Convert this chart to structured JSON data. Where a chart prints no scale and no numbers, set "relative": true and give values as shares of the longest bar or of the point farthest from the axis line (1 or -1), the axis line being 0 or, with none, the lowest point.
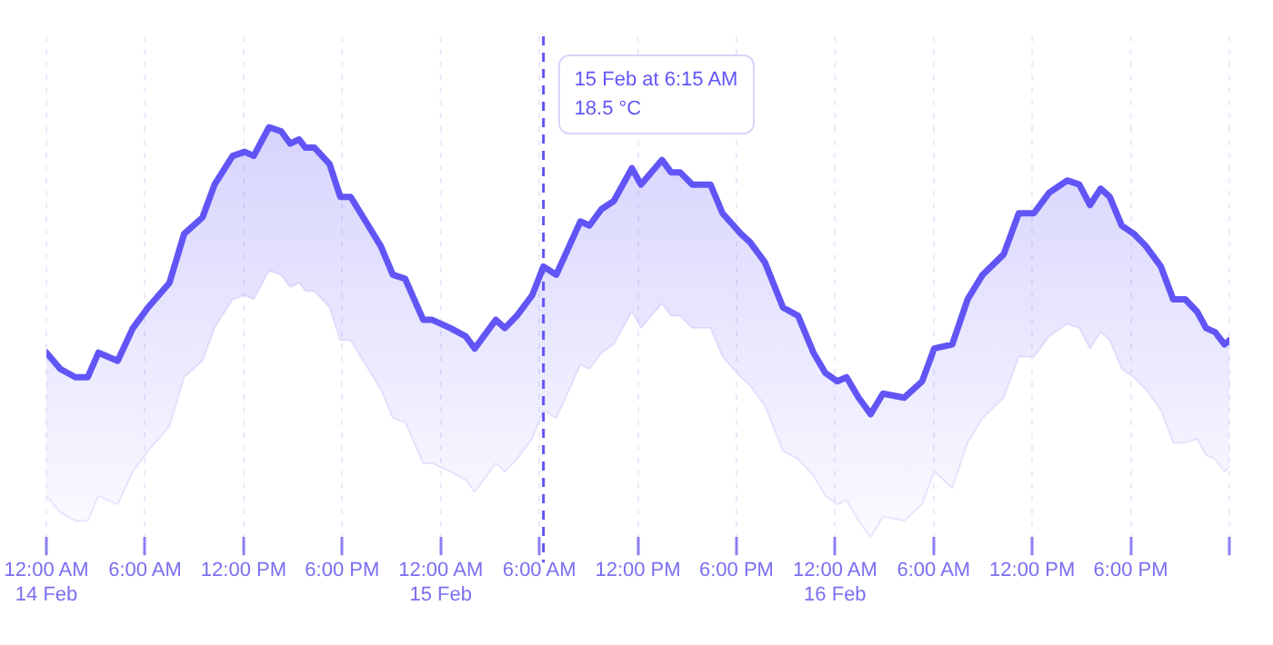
{
  "chart_data": {
    "type": "line",
    "relative": true,
    "x": [
      "--02-14T00:00",
      "--02-14T00:51",
      "--02-14T01:46",
      "--02-14T02:31",
      "--02-14T03:10",
      "--02-14T04:20",
      "--02-14T05:16",
      "--02-14T06:11",
      "--02-14T07:29",
      "--02-14T08:23",
      "--02-14T09:30",
      "--02-14T10:14",
      "--02-14T11:20",
      "--02-14T12:04",
      "--02-14T12:37",
      "--02-14T13:33",
      "--02-14T14:17",
      "--02-14T14:50",
      "--02-14T15:23",
      "--02-14T15:46",
      "--02-14T16:19",
      "--02-14T17:14",
      "--02-14T17:53",
      "--02-14T18:31",
      "--02-14T19:26",
      "--02-14T20:21",
      "--02-14T21:05",
      "--02-14T21:50",
      "--02-14T22:56",
      "--02-14T23:29",
      "--02-15T00:35",
      "--02-15T01:31",
      "--02-15T02:04",
      "--02-15T03:21",
      "--02-15T03:54",
      "--02-15T04:38",
      "--02-15T05:34",
      "--02-15T06:15",
      "--02-15T07:02",
      "--02-15T08:30",
      "--02-15T09:03",
      "--02-15T09:47",
      "--02-15T10:32",
      "--02-15T11:38",
      "--02-15T12:11",
      "--02-15T13:28",
      "--02-15T14:01",
      "--02-15T14:34",
      "--02-15T15:19",
      "--02-15T16:25",
      "--02-15T17:09",
      "--02-15T18:16",
      "--02-15T18:49",
      "--02-15T19:44",
      "--02-15T20:50",
      "--02-15T21:45",
      "--02-15T22:41",
      "--02-15T23:25",
      "--02-16T00:08",
      "--02-16T00:42",
      "--02-16T01:26",
      "--02-16T02:10",
      "--02-16T02:55",
      "--02-16T04:12",
      "--02-16T05:18",
      "--02-16T06:02",
      "--02-16T07:08",
      "--02-16T08:04",
      "--02-16T08:59",
      "--02-16T10:16",
      "--02-16T11:11",
      "--02-16T12:06",
      "--02-16T13:02",
      "--02-16T14:08",
      "--02-16T14:52",
      "--02-16T15:31",
      "--02-16T16:10",
      "--02-16T16:43",
      "--02-16T17:27",
      "--02-16T18:11",
      "--02-16T18:55",
      "--02-16T19:50",
      "--02-16T20:35",
      "--02-16T21:19",
      "--02-16T22:02",
      "--02-16T22:35",
      "--02-16T23:08",
      "--02-16T23:42",
      "--02-17T00:00"
    ],
    "series": [
      {
        "color": "#6155f5",
        "values": [
          0.45,
          0.41,
          0.39,
          0.39,
          0.45,
          0.43,
          0.51,
          0.56,
          0.62,
          0.74,
          0.78,
          0.86,
          0.93,
          0.94,
          0.93,
          1.0,
          0.99,
          0.96,
          0.97,
          0.95,
          0.95,
          0.91,
          0.83,
          0.83,
          0.77,
          0.71,
          0.64,
          0.63,
          0.53,
          0.53,
          0.51,
          0.49,
          0.46,
          0.53,
          0.51,
          0.54,
          0.59,
          0.66,
          0.64,
          0.77,
          0.76,
          0.8,
          0.82,
          0.9,
          0.86,
          0.92,
          0.89,
          0.89,
          0.86,
          0.86,
          0.79,
          0.74,
          0.72,
          0.67,
          0.56,
          0.54,
          0.45,
          0.4,
          0.38,
          0.39,
          0.34,
          0.3,
          0.35,
          0.34,
          0.38,
          0.46,
          0.47,
          0.58,
          0.64,
          0.69,
          0.79,
          0.79,
          0.84,
          0.87,
          0.86,
          0.81,
          0.85,
          0.83,
          0.76,
          0.74,
          0.71,
          0.66,
          0.58,
          0.58,
          0.55,
          0.51,
          0.5,
          0.47,
          0.48
        ],
        "type": "area"
      },
      {
        "color": "#ebe8fd",
        "values": [
          0.1,
          0.06,
          0.04,
          0.04,
          0.1,
          0.08,
          0.16,
          0.21,
          0.27,
          0.39,
          0.43,
          0.51,
          0.58,
          0.59,
          0.58,
          0.65,
          0.64,
          0.61,
          0.62,
          0.6,
          0.6,
          0.56,
          0.48,
          0.48,
          0.42,
          0.36,
          0.29,
          0.28,
          0.18,
          0.18,
          0.16,
          0.14,
          0.11,
          0.18,
          0.16,
          0.19,
          0.24,
          0.31,
          0.29,
          0.42,
          0.41,
          0.45,
          0.47,
          0.55,
          0.51,
          0.57,
          0.54,
          0.54,
          0.51,
          0.51,
          0.44,
          0.39,
          0.37,
          0.32,
          0.21,
          0.19,
          0.15,
          0.1,
          0.08,
          0.09,
          0.04,
          0.0,
          0.05,
          0.04,
          0.08,
          0.16,
          0.12,
          0.23,
          0.29,
          0.34,
          0.44,
          0.44,
          0.49,
          0.52,
          0.51,
          0.46,
          0.5,
          0.48,
          0.41,
          0.39,
          0.36,
          0.31,
          0.23,
          0.23,
          0.24,
          0.2,
          0.19,
          0.16,
          0.17
        ]
      }
    ],
    "xlim": [
      "--02-14T00:00",
      "--02-17T00:00"
    ],
    "xticks": [
      {
        "value": "--02-14T00:00",
        "label": "12:00 AM\n14 Feb"
      },
      {
        "value": "--02-14T06:00",
        "label": "6:00 AM"
      },
      {
        "value": "--02-14T12:00",
        "label": "12:00 PM"
      },
      {
        "value": "--02-14T18:00",
        "label": "6:00 PM"
      },
      {
        "value": "--02-15T00:00",
        "label": "12:00 AM\n15 Feb"
      },
      {
        "value": "--02-15T06:00",
        "label": "6:00 AM"
      },
      {
        "value": "--02-15T12:00",
        "label": "12:00 PM"
      },
      {
        "value": "--02-15T18:00",
        "label": "6:00 PM"
      },
      {
        "value": "--02-16T00:00",
        "label": "12:00 AM\n16 Feb"
      },
      {
        "value": "--02-16T06:00",
        "label": "6:00 AM"
      },
      {
        "value": "--02-16T12:00",
        "label": "12:00 PM"
      },
      {
        "value": "--02-16T18:00",
        "label": "6:00 PM"
      },
      {
        "value": "--02-17T00:00",
        "label": null
      }
    ],
    "ref_lines": [
      {
        "axis": "x",
        "value": "--02-15T06:15",
        "color": "#6155f5",
        "line_style": "dashed"
      }
    ],
    "annotations": [
      "15 Feb at 6:15 AM",
      "18.5 °C"
    ],
    "grid": "x",
    "legend": false,
    "tick_labels": "x",
    "marker": "none",
    "line_style": "solid"
  }
}
